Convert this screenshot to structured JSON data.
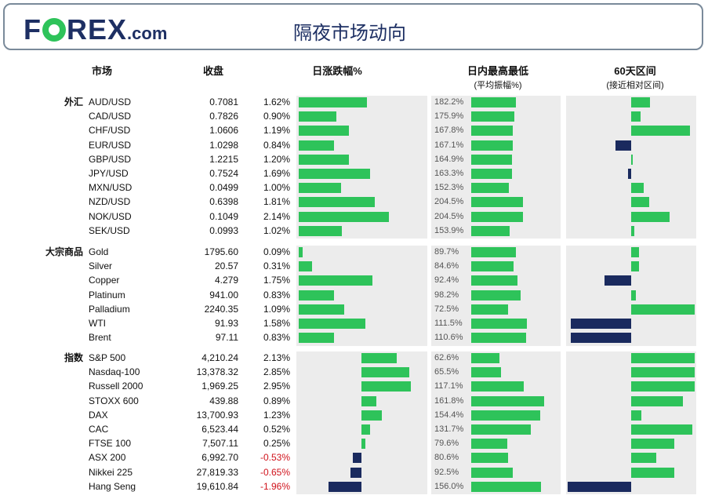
{
  "brand": {
    "logo_text_1": "F",
    "logo_text_2": "REX",
    "logo_com": ".com"
  },
  "page_title": "隔夜市场动向",
  "columns": {
    "market": "市场",
    "close": "收盘",
    "change": "日涨跌幅%",
    "range": "日内最高最低",
    "range_sub": "(平均振幅%)",
    "sixty": "60天区间",
    "sixty_sub": "(接近相对区间)"
  },
  "groups": [
    {
      "label": "外汇",
      "rows": [
        {
          "name": "AUD/USD",
          "close": "0.7081",
          "chg": "1.62%",
          "chg_val": 1.62,
          "avg": "182.2%",
          "avg_faint": false,
          "range_val": 0.6,
          "sixty": {
            "side": "pos",
            "val": 0.3
          }
        },
        {
          "name": "CAD/USD",
          "close": "0.7826",
          "chg": "0.90%",
          "chg_val": 0.9,
          "avg": "175.9%",
          "avg_faint": false,
          "range_val": 0.58,
          "sixty": {
            "side": "pos",
            "val": 0.15
          }
        },
        {
          "name": "CHF/USD",
          "close": "1.0606",
          "chg": "1.19%",
          "chg_val": 1.19,
          "avg": "167.8%",
          "avg_faint": false,
          "range_val": 0.56,
          "sixty": {
            "side": "pos",
            "val": 0.93
          }
        },
        {
          "name": "EUR/USD",
          "close": "1.0298",
          "chg": "0.84%",
          "chg_val": 0.84,
          "avg": "167.1%",
          "avg_faint": false,
          "range_val": 0.56,
          "sixty": {
            "side": "neg",
            "val": 0.25
          }
        },
        {
          "name": "GBP/USD",
          "close": "1.2215",
          "chg": "1.20%",
          "chg_val": 1.2,
          "avg": "164.9%",
          "avg_faint": false,
          "range_val": 0.55,
          "sixty": {
            "side": "pos",
            "val": 0.03
          }
        },
        {
          "name": "JPY/USD",
          "close": "0.7524",
          "chg": "1.69%",
          "chg_val": 1.69,
          "avg": "163.3%",
          "avg_faint": false,
          "range_val": 0.55,
          "sixty": {
            "side": "neg",
            "val": 0.05
          }
        },
        {
          "name": "MXN/USD",
          "close": "0.0499",
          "chg": "1.00%",
          "chg_val": 1.0,
          "avg": "152.3%",
          "avg_faint": false,
          "range_val": 0.51,
          "sixty": {
            "side": "pos",
            "val": 0.2
          }
        },
        {
          "name": "NZD/USD",
          "close": "0.6398",
          "chg": "1.81%",
          "chg_val": 1.81,
          "avg": "204.5%",
          "avg_faint": false,
          "range_val": 0.69,
          "sixty": {
            "side": "pos",
            "val": 0.28
          }
        },
        {
          "name": "NOK/USD",
          "close": "0.1049",
          "chg": "2.14%",
          "chg_val": 2.14,
          "avg": "204.5%",
          "avg_faint": false,
          "range_val": 0.69,
          "sixty": {
            "side": "pos",
            "val": 0.6
          }
        },
        {
          "name": "SEK/USD",
          "close": "0.0993",
          "chg": "1.02%",
          "chg_val": 1.02,
          "avg": "153.9%",
          "avg_faint": false,
          "range_val": 0.52,
          "sixty": {
            "side": "pos",
            "val": 0.05
          }
        }
      ]
    },
    {
      "label": "大宗商品",
      "rows": [
        {
          "name": "Gold",
          "close": "1795.60",
          "chg": "0.09%",
          "chg_val": 0.09,
          "avg": "89.7%",
          "avg_faint": true,
          "range_val": 0.6,
          "sixty": {
            "side": "pos",
            "val": 0.12
          }
        },
        {
          "name": "Silver",
          "close": "20.57",
          "chg": "0.31%",
          "chg_val": 0.31,
          "avg": "84.6%",
          "avg_faint": true,
          "range_val": 0.57,
          "sixty": {
            "side": "pos",
            "val": 0.12
          }
        },
        {
          "name": "Copper",
          "close": "4.279",
          "chg": "1.75%",
          "chg_val": 1.75,
          "avg": "92.4%",
          "avg_faint": true,
          "range_val": 0.62,
          "sixty": {
            "side": "neg",
            "val": 0.42
          }
        },
        {
          "name": "Platinum",
          "close": "941.00",
          "chg": "0.83%",
          "chg_val": 0.83,
          "avg": "98.2%",
          "avg_faint": true,
          "range_val": 0.66,
          "sixty": {
            "side": "pos",
            "val": 0.08
          }
        },
        {
          "name": "Palladium",
          "close": "2240.35",
          "chg": "1.09%",
          "chg_val": 1.09,
          "avg": "72.5%",
          "avg_faint": true,
          "range_val": 0.49,
          "sixty": {
            "side": "pos",
            "val": 1.0
          }
        },
        {
          "name": "WTI",
          "close": "91.93",
          "chg": "1.58%",
          "chg_val": 1.58,
          "avg": "111.5%",
          "avg_faint": false,
          "range_val": 0.75,
          "sixty": {
            "side": "neg",
            "val": 0.95
          }
        },
        {
          "name": "Brent",
          "close": "97.11",
          "chg": "0.83%",
          "chg_val": 0.83,
          "avg": "110.6%",
          "avg_faint": false,
          "range_val": 0.74,
          "sixty": {
            "side": "neg",
            "val": 0.95
          }
        }
      ]
    },
    {
      "label": "指数",
      "rows": [
        {
          "name": "S&P 500",
          "close": "4,210.24",
          "chg": "2.13%",
          "chg_val": 2.13,
          "avg": "62.6%",
          "avg_faint": true,
          "range_val": 0.38,
          "sixty": {
            "side": "pos",
            "val": 1.0
          }
        },
        {
          "name": "Nasdaq-100",
          "close": "13,378.32",
          "chg": "2.85%",
          "chg_val": 2.85,
          "avg": "65.5%",
          "avg_faint": true,
          "range_val": 0.4,
          "sixty": {
            "side": "pos",
            "val": 1.0
          }
        },
        {
          "name": "Russell 2000",
          "close": "1,969.25",
          "chg": "2.95%",
          "chg_val": 2.95,
          "avg": "117.1%",
          "avg_faint": false,
          "range_val": 0.71,
          "sixty": {
            "side": "pos",
            "val": 1.0
          }
        },
        {
          "name": "STOXX 600",
          "close": "439.88",
          "chg": "0.89%",
          "chg_val": 0.89,
          "avg": "161.8%",
          "avg_faint": false,
          "range_val": 0.98,
          "sixty": {
            "side": "pos",
            "val": 0.82
          }
        },
        {
          "name": "DAX",
          "close": "13,700.93",
          "chg": "1.23%",
          "chg_val": 1.23,
          "avg": "154.4%",
          "avg_faint": false,
          "range_val": 0.93,
          "sixty": {
            "side": "pos",
            "val": 0.16
          }
        },
        {
          "name": "CAC",
          "close": "6,523.44",
          "chg": "0.52%",
          "chg_val": 0.52,
          "avg": "131.7%",
          "avg_faint": false,
          "range_val": 0.8,
          "sixty": {
            "side": "pos",
            "val": 0.96
          }
        },
        {
          "name": "FTSE 100",
          "close": "7,507.11",
          "chg": "0.25%",
          "chg_val": 0.25,
          "avg": "79.6%",
          "avg_faint": true,
          "range_val": 0.48,
          "sixty": {
            "side": "pos",
            "val": 0.68
          }
        },
        {
          "name": "ASX 200",
          "close": "6,992.70",
          "chg": "-0.53%",
          "chg_val": -0.53,
          "avg": "80.6%",
          "avg_faint": true,
          "range_val": 0.49,
          "sixty": {
            "side": "pos",
            "val": 0.4
          }
        },
        {
          "name": "Nikkei 225",
          "close": "27,819.33",
          "chg": "-0.65%",
          "chg_val": -0.65,
          "avg": "92.5%",
          "avg_faint": true,
          "range_val": 0.56,
          "sixty": {
            "side": "pos",
            "val": 0.68
          }
        },
        {
          "name": "Hang Seng",
          "close": "19,610.84",
          "chg": "-1.96%",
          "chg_val": -1.96,
          "avg": "156.0%",
          "avg_faint": false,
          "range_val": 0.94,
          "sixty": {
            "side": "neg",
            "val": 1.0
          }
        }
      ]
    }
  ],
  "colors": {
    "green": "#2ec35a",
    "navy": "#1a2a5e",
    "negative_text": "#d0121b",
    "panel": "#ececec"
  }
}
